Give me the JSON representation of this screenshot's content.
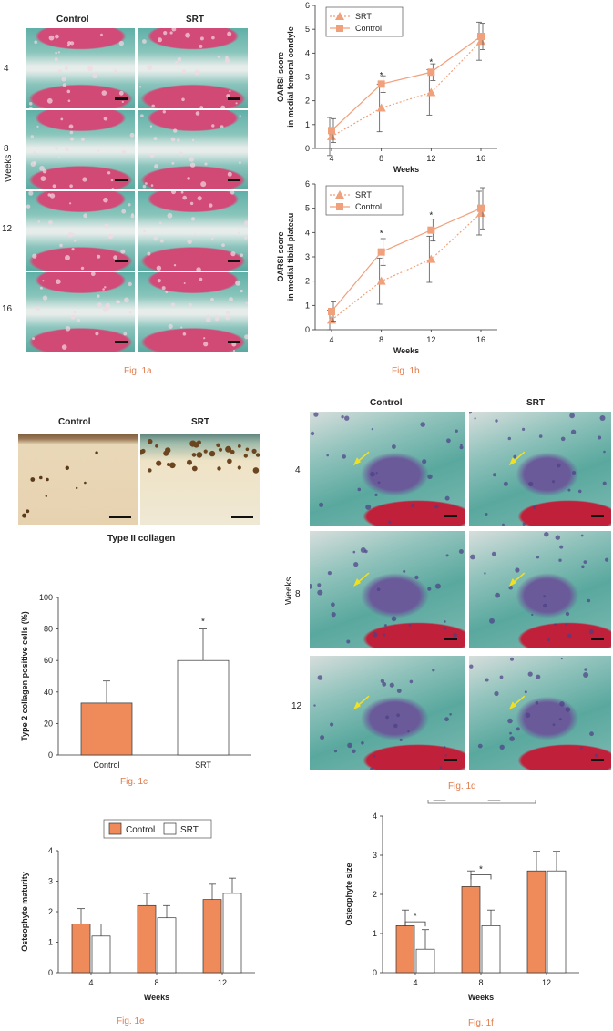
{
  "colors": {
    "control": "#ef8a5a",
    "srt_open": "#ffffff",
    "marker": "#f1a07c",
    "caption": "#e07a4a",
    "arrow": "#f0e020"
  },
  "fig1a": {
    "col_headers": [
      "Control",
      "SRT"
    ],
    "row_labels": [
      "4",
      "8",
      "12",
      "16"
    ],
    "weeks_label": "Weeks",
    "caption": "Fig. 1a"
  },
  "fig1c_img": {
    "col_headers": [
      "Control",
      "SRT"
    ],
    "label": "Type II collagen"
  },
  "fig1d": {
    "col_headers": [
      "Control",
      "SRT"
    ],
    "row_labels": [
      "4",
      "8",
      "12"
    ],
    "weeks_label": "Weeks",
    "caption": "Fig. 1d"
  },
  "captions": {
    "b": "Fig. 1b",
    "c": "Fig. 1c",
    "e": "Fig. 1e",
    "f": "Fig. 1f"
  },
  "chart_data": [
    {
      "id": "fig1b-top",
      "type": "line",
      "x": [
        4,
        8,
        12,
        16
      ],
      "xlabel": "Weeks",
      "ylabel_lines": [
        "OARSI score",
        "in medial femoral condyle"
      ],
      "ylim": [
        0,
        6
      ],
      "yticks": [
        0,
        1,
        2,
        3,
        4,
        5,
        6
      ],
      "series": [
        {
          "name": "SRT",
          "marker": "triangle",
          "dash": true,
          "values": [
            0.5,
            1.7,
            2.35,
            4.5
          ],
          "err": [
            0.8,
            1.0,
            0.95,
            0.8
          ]
        },
        {
          "name": "Control",
          "marker": "square",
          "dash": false,
          "values": [
            0.75,
            2.7,
            3.2,
            4.7
          ],
          "err": [
            0.5,
            0.35,
            0.35,
            0.55
          ]
        }
      ],
      "significance": [
        {
          "x": 8,
          "y": 2.95,
          "label": "*"
        },
        {
          "x": 12,
          "y": 3.5,
          "label": "*"
        }
      ],
      "legend": "top-left"
    },
    {
      "id": "fig1b-bottom",
      "type": "line",
      "x": [
        4,
        8,
        12,
        16
      ],
      "xlabel": "Weeks",
      "ylabel_lines": [
        "OARSI score",
        "in medial tibial plateau"
      ],
      "ylim": [
        0,
        6
      ],
      "yticks": [
        0,
        1,
        2,
        3,
        4,
        5,
        6
      ],
      "series": [
        {
          "name": "SRT",
          "marker": "triangle",
          "dash": true,
          "values": [
            0.4,
            2.0,
            2.9,
            4.8
          ],
          "err": [
            0.4,
            0.95,
            0.95,
            0.9
          ]
        },
        {
          "name": "Control",
          "marker": "square",
          "dash": false,
          "values": [
            0.75,
            3.2,
            4.1,
            5.0
          ],
          "err": [
            0.4,
            0.55,
            0.45,
            0.85
          ]
        }
      ],
      "significance": [
        {
          "x": 8,
          "y": 3.85,
          "label": "*"
        },
        {
          "x": 12,
          "y": 4.6,
          "label": "*"
        }
      ],
      "legend": "top-left"
    },
    {
      "id": "fig1c",
      "type": "bar",
      "categories": [
        "Control",
        "SRT"
      ],
      "ylabel": "Type 2 collagen positive cells (%)",
      "ylim": [
        0,
        100
      ],
      "yticks": [
        0,
        20,
        40,
        60,
        80,
        100
      ],
      "series": [
        {
          "values": [
            33,
            60
          ],
          "err": [
            14,
            20
          ]
        }
      ],
      "significance": [
        {
          "category": "SRT",
          "y": 83,
          "label": "*"
        }
      ]
    },
    {
      "id": "fig1e",
      "type": "bar",
      "categories": [
        "4",
        "8",
        "12"
      ],
      "xlabel": "Weeks",
      "ylabel": "Osteophyte maturity",
      "ylim": [
        0,
        4
      ],
      "yticks": [
        0,
        1,
        2,
        3,
        4
      ],
      "series": [
        {
          "name": "Control",
          "values": [
            1.6,
            2.2,
            2.4
          ],
          "err": [
            0.5,
            0.4,
            0.5
          ]
        },
        {
          "name": "SRT",
          "values": [
            1.2,
            1.8,
            2.6
          ],
          "err": [
            0.4,
            0.4,
            0.5
          ]
        }
      ],
      "legend": "top"
    },
    {
      "id": "fig1f",
      "type": "bar",
      "categories": [
        "4",
        "8",
        "12"
      ],
      "xlabel": "Weeks",
      "ylabel": "Osteophyte size",
      "ylim": [
        0,
        4
      ],
      "yticks": [
        0,
        1,
        2,
        3,
        4
      ],
      "series": [
        {
          "name": "Control",
          "values": [
            1.2,
            2.2,
            2.6
          ],
          "err": [
            0.4,
            0.4,
            0.5
          ]
        },
        {
          "name": "SRT",
          "values": [
            0.6,
            1.2,
            2.6
          ],
          "err": [
            0.5,
            0.4,
            0.5
          ]
        }
      ],
      "brackets": [
        {
          "category": "4",
          "y": 1.3,
          "label": "*"
        },
        {
          "category": "8",
          "y": 2.5,
          "label": "*"
        }
      ],
      "legend": "top"
    }
  ]
}
